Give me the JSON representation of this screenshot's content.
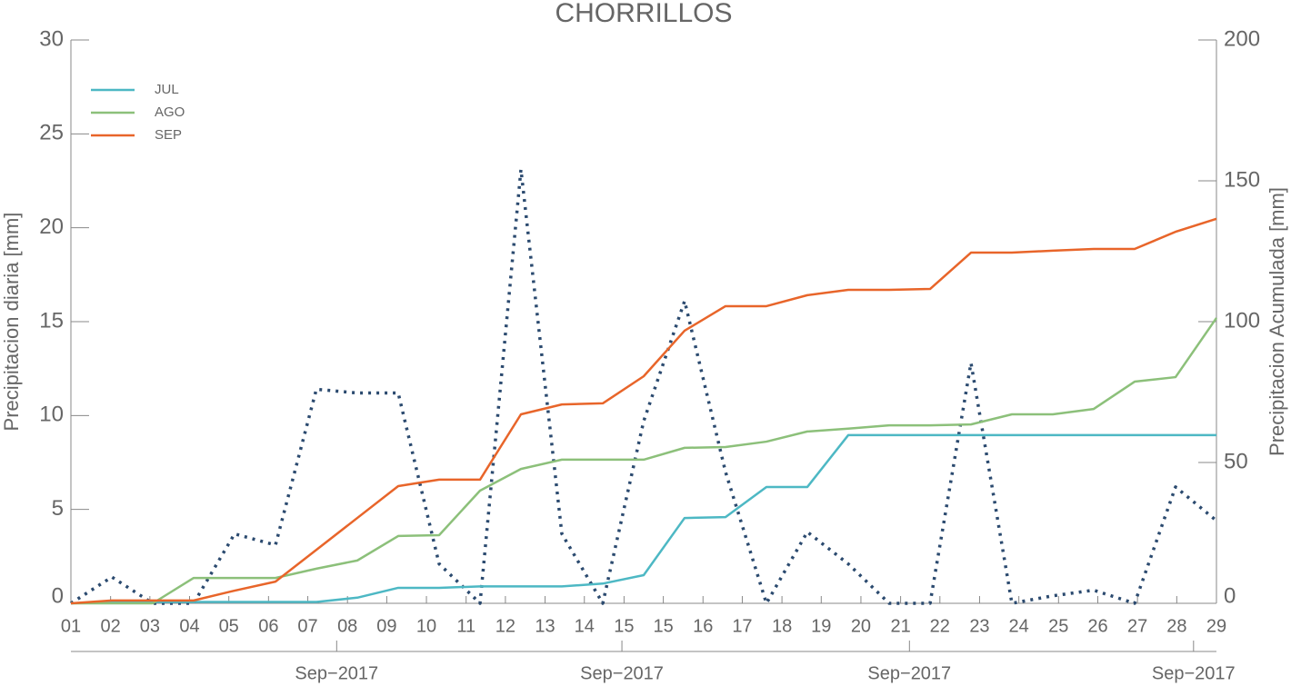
{
  "chart_data": {
    "type": "line",
    "title": "CHORRILLOS",
    "y_label": "Precipitacion diaria [mm]",
    "y2_label": "Precipitacion Acumulada [mm]",
    "x": [
      1,
      2,
      3,
      4,
      5,
      6,
      7,
      8,
      9,
      10,
      11,
      12,
      13,
      14,
      15,
      16,
      17,
      18,
      19,
      20,
      21,
      22,
      23,
      24,
      25,
      26,
      27,
      28,
      29
    ],
    "xlim": [
      1,
      29
    ],
    "xticks": [
      {
        "value": 1,
        "label": "01"
      },
      {
        "value": 1.97,
        "label": "02"
      },
      {
        "value": 2.93,
        "label": "03"
      },
      {
        "value": 3.9,
        "label": "04"
      },
      {
        "value": 4.86,
        "label": "05"
      },
      {
        "value": 5.83,
        "label": "06"
      },
      {
        "value": 6.79,
        "label": "07"
      },
      {
        "value": 7.76,
        "label": "08"
      },
      {
        "value": 8.72,
        "label": "09"
      },
      {
        "value": 9.69,
        "label": "10"
      },
      {
        "value": 10.66,
        "label": "11"
      },
      {
        "value": 11.62,
        "label": "12"
      },
      {
        "value": 12.59,
        "label": "13"
      },
      {
        "value": 13.55,
        "label": "14"
      },
      {
        "value": 14.52,
        "label": "15"
      },
      {
        "value": 15.48,
        "label": "15"
      },
      {
        "value": 16.45,
        "label": "16"
      },
      {
        "value": 17.41,
        "label": "17"
      },
      {
        "value": 18.38,
        "label": "18"
      },
      {
        "value": 19.34,
        "label": "19"
      },
      {
        "value": 20.31,
        "label": "20"
      },
      {
        "value": 21.28,
        "label": "21"
      },
      {
        "value": 22.24,
        "label": "22"
      },
      {
        "value": 23.21,
        "label": "23"
      },
      {
        "value": 24.17,
        "label": "24"
      },
      {
        "value": 25.14,
        "label": "25"
      },
      {
        "value": 26.1,
        "label": "26"
      },
      {
        "value": 27.07,
        "label": "27"
      },
      {
        "value": 28.03,
        "label": "28"
      },
      {
        "value": 29,
        "label": "29"
      }
    ],
    "period_labels": [
      "Sep−2017",
      "Sep−2017",
      "Sep−2017",
      "Sep−2017"
    ],
    "ylim": [
      0,
      30
    ],
    "yticks": [
      0,
      5,
      10,
      15,
      20,
      25,
      30
    ],
    "y2lim": [
      0,
      200
    ],
    "y2ticks": [
      0,
      50,
      100,
      150,
      200
    ],
    "legend": "upper left",
    "series": [
      {
        "color": "#2b4a6f",
        "style": "dotted",
        "values": [
          0,
          1.4,
          0,
          0,
          3.7,
          3.1,
          11.4,
          11.2,
          11.2,
          2.1,
          0,
          23.1,
          3.7,
          0,
          9.7,
          16.1,
          7.0,
          0,
          3.8,
          2.1,
          0,
          0,
          12.8,
          0,
          0.4,
          0.7,
          0,
          6.2,
          4.4
        ]
      },
      {
        "name": "JUL",
        "color": "#4db8c4",
        "axis": "y2",
        "values": [
          0,
          0.5,
          0.5,
          0.5,
          0.5,
          0.5,
          0.5,
          2,
          5.5,
          5.5,
          6,
          6,
          6,
          7,
          10,
          30.3,
          30.6,
          41.3,
          41.3,
          59.7,
          59.7,
          59.7,
          59.7,
          59.7,
          59.7,
          59.7,
          59.7,
          59.7,
          59.7
        ]
      },
      {
        "name": "AGO",
        "color": "#8cc07a",
        "axis": "y2",
        "values": [
          0,
          0,
          0,
          9,
          9,
          9,
          12.3,
          15.2,
          23.9,
          24.2,
          40,
          47.7,
          51,
          51,
          51,
          55.2,
          55.5,
          57.4,
          61,
          62,
          63.2,
          63.2,
          63.5,
          67.1,
          67.1,
          69,
          78.7,
          80.3,
          101.3
        ]
      },
      {
        "name": "SEP",
        "color": "#e8652a",
        "axis": "y2",
        "values": [
          0,
          1,
          1,
          1,
          4.5,
          7.7,
          19,
          30.3,
          41.6,
          43.9,
          43.9,
          67.1,
          70.6,
          71,
          80.6,
          96.8,
          105.5,
          105.5,
          109.4,
          111.3,
          111.3,
          111.6,
          124.5,
          124.5,
          125.2,
          125.8,
          125.8,
          131.9,
          136.5
        ]
      }
    ]
  }
}
